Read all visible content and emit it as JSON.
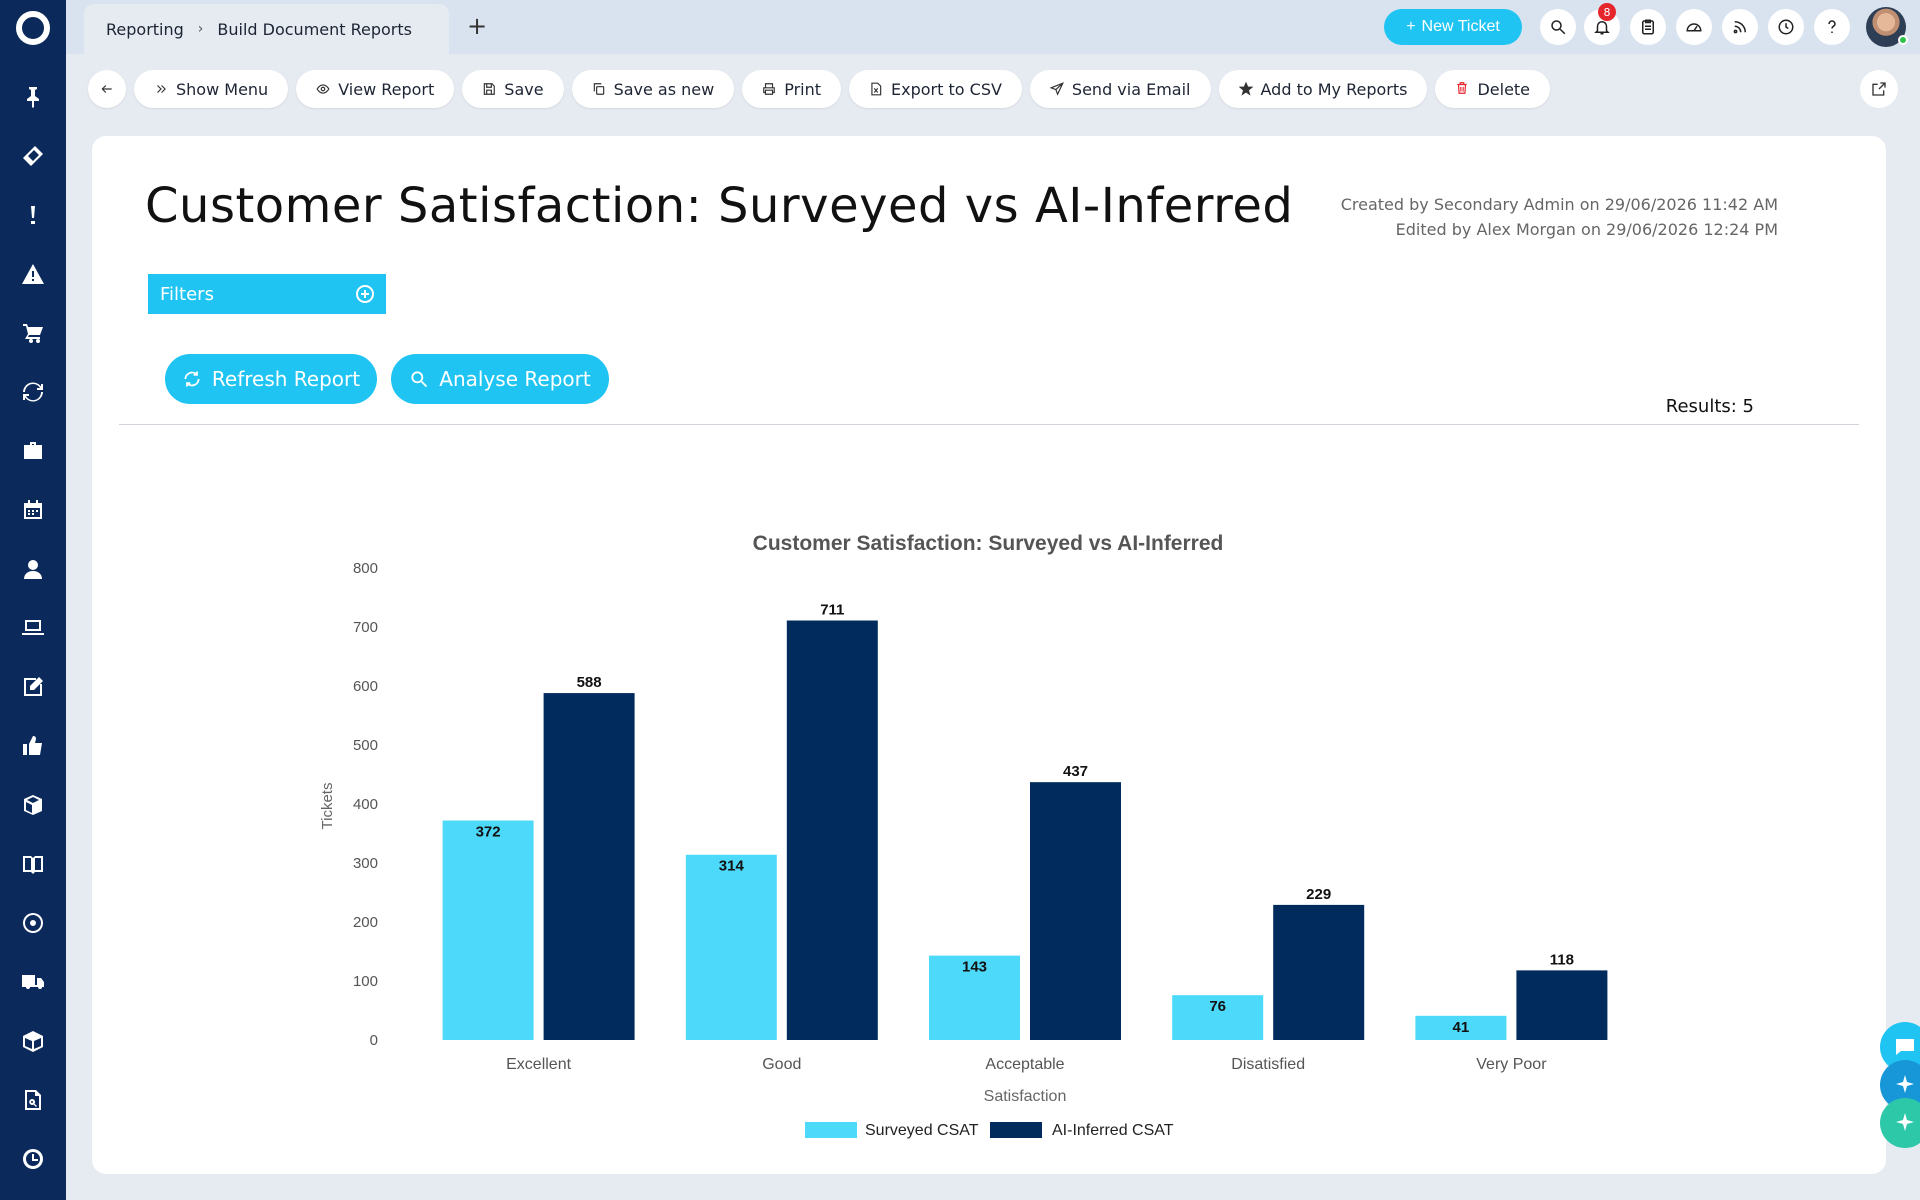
{
  "topbar": {
    "breadcrumb": [
      "Reporting",
      "Build Document Reports"
    ],
    "new_ticket_label": "New Ticket",
    "notification_count": "8"
  },
  "toolbar": {
    "show_menu": "Show Menu",
    "view_report": "View Report",
    "save": "Save",
    "save_as_new": "Save as new",
    "print": "Print",
    "export_csv": "Export to CSV",
    "send_email": "Send via Email",
    "add_reports": "Add to My Reports",
    "delete": "Delete"
  },
  "report": {
    "title": "Customer Satisfaction: Surveyed vs AI-Inferred",
    "created": "Created by Secondary Admin on 29/06/2026 11:42 AM",
    "edited": "Edited by Alex Morgan on 29/06/2026 12:24 PM",
    "filters_label": "Filters",
    "refresh_label": "Refresh Report",
    "analyse_label": "Analyse Report",
    "results": "Results: 5"
  },
  "colors": {
    "accent": "#1fc4f3",
    "sidebar": "#0b2a5b",
    "surveyed": "#4dd9fa",
    "ai": "#002b5c"
  },
  "chart_data": {
    "type": "bar",
    "title": "Customer Satisfaction: Surveyed vs AI-Inferred",
    "xlabel": "Satisfaction",
    "ylabel": "Tickets",
    "categories": [
      "Excellent",
      "Good",
      "Acceptable",
      "Disatisfied",
      "Very Poor"
    ],
    "series": [
      {
        "name": "Surveyed CSAT",
        "values": [
          372,
          314,
          143,
          76,
          41
        ],
        "color": "#4dd9fa"
      },
      {
        "name": "AI-Inferred CSAT",
        "values": [
          588,
          711,
          437,
          229,
          118
        ],
        "color": "#002b5c"
      }
    ],
    "ylim": [
      0,
      800
    ],
    "yticks": [
      0,
      100,
      200,
      300,
      400,
      500,
      600,
      700,
      800
    ],
    "grid": false,
    "legend": "bottom-center",
    "data_labels": true
  }
}
